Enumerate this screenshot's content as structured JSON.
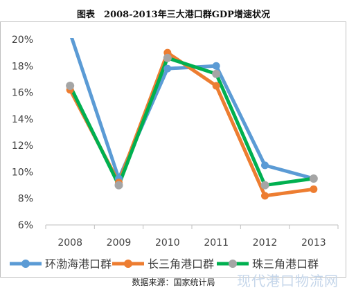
{
  "title": "图表　2008-2013年三大港口群GDP增速状况",
  "source": "数据来源：国家统计局",
  "watermark": "现代港口物流网",
  "chart_data": {
    "type": "line",
    "categories": [
      "2008",
      "2009",
      "2010",
      "2011",
      "2012",
      "2013"
    ],
    "y_ticks": [
      "6%",
      "8%",
      "10%",
      "12%",
      "14%",
      "16%",
      "18%",
      "20%"
    ],
    "ylim": [
      6,
      20
    ],
    "y_unit": "%",
    "grid": false,
    "legend_position": "bottom",
    "series": [
      {
        "name": "环渤海港口群",
        "color": "#5b9bd5",
        "values": [
          20.5,
          9.5,
          17.8,
          18.0,
          10.5,
          9.5
        ]
      },
      {
        "name": "长三角港口群",
        "color": "#ed7d31",
        "values": [
          16.2,
          9.2,
          19.0,
          16.5,
          8.2,
          8.7
        ]
      },
      {
        "name": "珠三角港口群",
        "color": "#00b050",
        "values": [
          16.5,
          9.0,
          18.6,
          17.4,
          9.0,
          9.5
        ]
      }
    ],
    "marker_color": "#a5a5a5"
  }
}
